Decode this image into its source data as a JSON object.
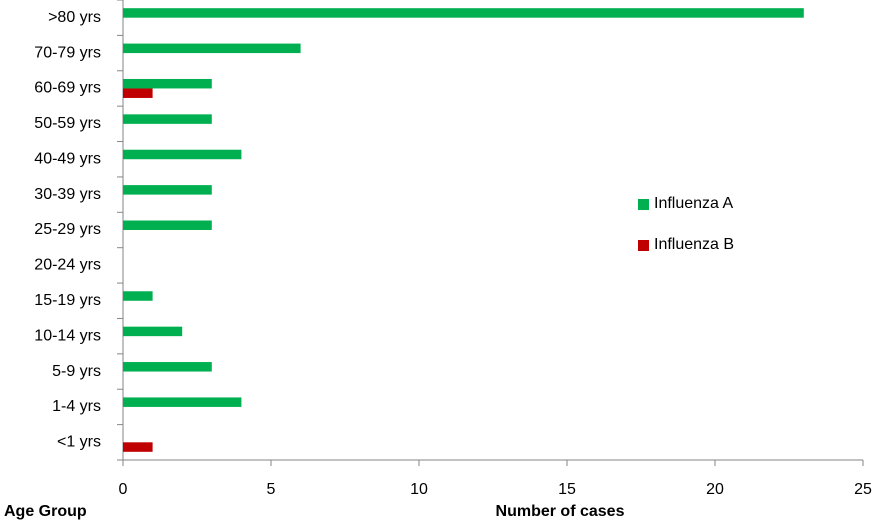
{
  "chart_data": {
    "type": "hbar",
    "categories": [
      ">80 yrs",
      "70-79 yrs",
      "60-69 yrs",
      "50-59 yrs",
      "40-49 yrs",
      "30-39 yrs",
      "25-29 yrs",
      "20-24 yrs",
      "15-19 yrs",
      "10-14 yrs",
      "5-9 yrs",
      "1-4 yrs",
      "<1 yrs"
    ],
    "series": [
      {
        "name": "Influenza A",
        "color": "#00b050",
        "values": [
          23,
          6,
          3,
          3,
          4,
          3,
          3,
          0,
          1,
          2,
          3,
          4,
          0
        ]
      },
      {
        "name": "Influenza B",
        "color": "#c00000",
        "values": [
          0,
          0,
          1,
          0,
          0,
          0,
          0,
          0,
          0,
          0,
          0,
          0,
          1
        ]
      }
    ],
    "xlim": [
      0,
      25
    ],
    "xticks": [
      0,
      5,
      10,
      15,
      20,
      25
    ],
    "ylabel": "Age Group",
    "xlabel": "Number of cases",
    "grid": false,
    "legend": "right"
  }
}
